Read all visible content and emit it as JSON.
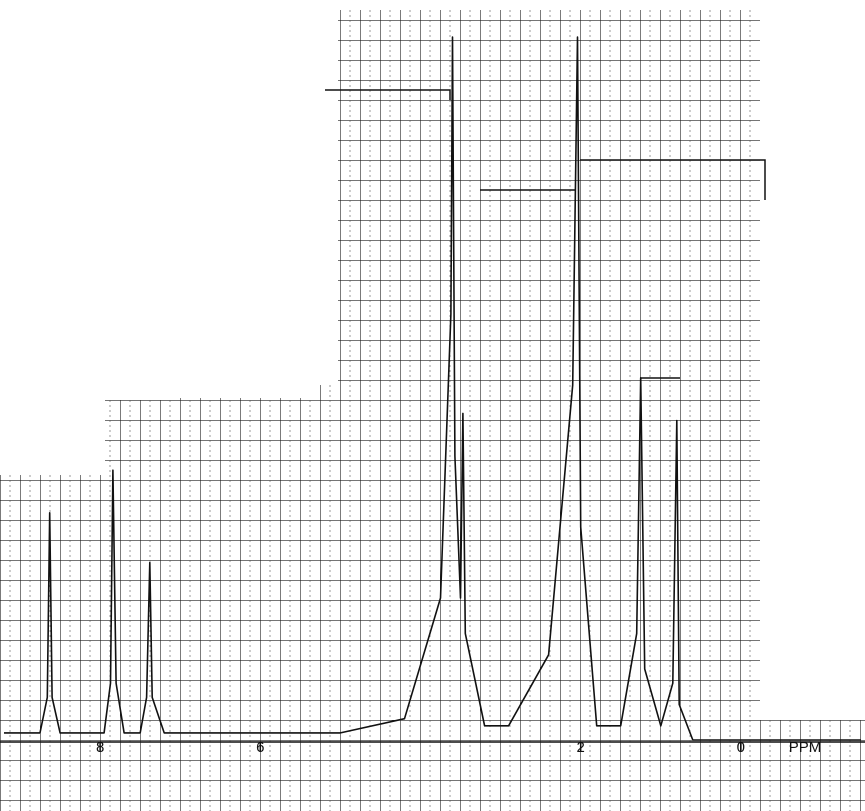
{
  "chart_data": {
    "type": "line",
    "x_label": "PPM",
    "xlim": [
      9.25,
      -1.55
    ],
    "ylim": [
      0,
      100
    ],
    "xticks": [
      8,
      6,
      2,
      0
    ],
    "color": "#111111",
    "x": [
      9.2,
      8.75,
      8.66,
      8.63,
      8.6,
      8.5,
      7.95,
      7.87,
      7.84,
      7.8,
      7.7,
      7.5,
      7.42,
      7.38,
      7.35,
      7.2,
      5.0,
      4.2,
      3.75,
      3.62,
      3.6,
      3.57,
      3.5,
      3.47,
      3.44,
      3.2,
      2.9,
      2.4,
      2.1,
      2.04,
      2.0,
      1.8,
      1.5,
      1.3,
      1.25,
      1.2,
      1.0,
      0.85,
      0.8,
      0.77,
      0.6,
      -1.5
    ],
    "values": [
      1,
      1,
      6,
      32,
      6,
      1,
      1,
      8,
      38,
      8,
      1,
      1,
      6,
      25,
      6,
      1,
      1,
      3,
      20,
      60,
      99,
      40,
      20,
      46,
      15,
      2,
      2,
      12,
      50,
      99,
      30,
      2,
      2,
      15,
      51,
      10,
      2,
      8,
      45,
      5,
      0,
      0
    ]
  }
}
